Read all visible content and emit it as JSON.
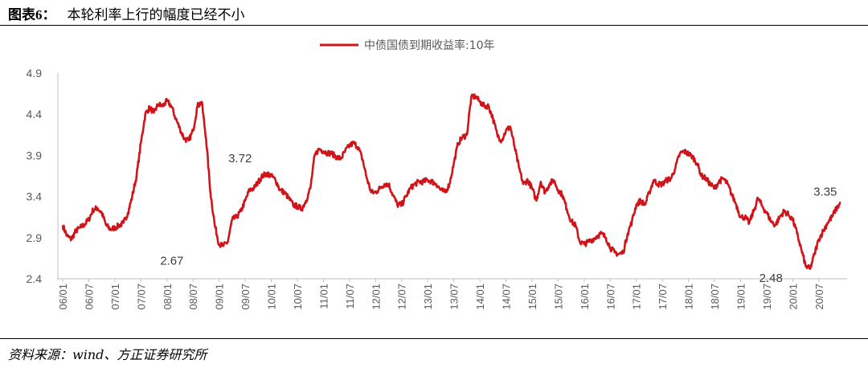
{
  "figure": {
    "label": "图表",
    "number": "6",
    "separator": "：",
    "title": "本轮利率上行的幅度已经不小"
  },
  "source": "资料来源：wind、方正证券研究所",
  "colors": {
    "series": "#d0141a",
    "axis": "#bfbfbf",
    "text": "#595959"
  },
  "chart_data": {
    "type": "line",
    "title": "",
    "xlabel": "",
    "ylabel": "",
    "legend": {
      "position": "top-center"
    },
    "grid": false,
    "ylim": [
      2.4,
      4.9
    ],
    "y_ticks": [
      "2.4",
      "2.9",
      "3.4",
      "3.9",
      "4.4",
      "4.9"
    ],
    "x_ticks": [
      "06/01",
      "06/07",
      "07/01",
      "07/07",
      "08/01",
      "08/07",
      "09/01",
      "09/07",
      "10/01",
      "10/07",
      "11/01",
      "11/07",
      "12/01",
      "12/07",
      "13/01",
      "13/07",
      "14/01",
      "14/07",
      "15/01",
      "15/07",
      "16/01",
      "16/07",
      "17/01",
      "17/07",
      "18/01",
      "18/07",
      "19/01",
      "19/07",
      "20/01",
      "20/07"
    ],
    "series": [
      {
        "name": "中债国债到期收益率:10年",
        "points": [
          [
            "2006-01",
            3.05
          ],
          [
            "2006-02",
            2.92
          ],
          [
            "2006-03",
            2.88
          ],
          [
            "2006-04",
            2.98
          ],
          [
            "2006-05",
            3.02
          ],
          [
            "2006-06",
            3.06
          ],
          [
            "2006-07",
            3.12
          ],
          [
            "2006-08",
            3.24
          ],
          [
            "2006-09",
            3.26
          ],
          [
            "2006-10",
            3.2
          ],
          [
            "2006-11",
            3.05
          ],
          [
            "2006-12",
            3.0
          ],
          [
            "2007-01",
            3.02
          ],
          [
            "2007-02",
            3.05
          ],
          [
            "2007-03",
            3.08
          ],
          [
            "2007-04",
            3.2
          ],
          [
            "2007-05",
            3.4
          ],
          [
            "2007-06",
            3.65
          ],
          [
            "2007-07",
            4.05
          ],
          [
            "2007-08",
            4.4
          ],
          [
            "2007-09",
            4.48
          ],
          [
            "2007-10",
            4.42
          ],
          [
            "2007-11",
            4.52
          ],
          [
            "2007-12",
            4.5
          ],
          [
            "2008-01",
            4.56
          ],
          [
            "2008-02",
            4.5
          ],
          [
            "2008-03",
            4.35
          ],
          [
            "2008-04",
            4.22
          ],
          [
            "2008-05",
            4.1
          ],
          [
            "2008-06",
            4.08
          ],
          [
            "2008-07",
            4.2
          ],
          [
            "2008-08",
            4.5
          ],
          [
            "2008-09",
            4.55
          ],
          [
            "2008-10",
            4.1
          ],
          [
            "2008-11",
            3.45
          ],
          [
            "2008-12",
            3.05
          ],
          [
            "2009-01",
            2.82
          ],
          [
            "2009-02",
            2.8
          ],
          [
            "2009-03",
            2.85
          ],
          [
            "2009-04",
            3.12
          ],
          [
            "2009-05",
            3.15
          ],
          [
            "2009-06",
            3.22
          ],
          [
            "2009-07",
            3.35
          ],
          [
            "2009-08",
            3.48
          ],
          [
            "2009-09",
            3.5
          ],
          [
            "2009-10",
            3.58
          ],
          [
            "2009-11",
            3.65
          ],
          [
            "2009-12",
            3.68
          ],
          [
            "2010-01",
            3.65
          ],
          [
            "2010-02",
            3.6
          ],
          [
            "2010-03",
            3.48
          ],
          [
            "2010-04",
            3.45
          ],
          [
            "2010-05",
            3.38
          ],
          [
            "2010-06",
            3.3
          ],
          [
            "2010-07",
            3.28
          ],
          [
            "2010-08",
            3.25
          ],
          [
            "2010-09",
            3.35
          ],
          [
            "2010-10",
            3.5
          ],
          [
            "2010-11",
            3.9
          ],
          [
            "2010-12",
            3.98
          ],
          [
            "2011-01",
            3.95
          ],
          [
            "2011-02",
            3.93
          ],
          [
            "2011-03",
            3.92
          ],
          [
            "2011-04",
            3.88
          ],
          [
            "2011-05",
            3.86
          ],
          [
            "2011-06",
            3.95
          ],
          [
            "2011-07",
            4.02
          ],
          [
            "2011-08",
            4.05
          ],
          [
            "2011-09",
            4.0
          ],
          [
            "2011-10",
            3.85
          ],
          [
            "2011-11",
            3.62
          ],
          [
            "2011-12",
            3.45
          ],
          [
            "2012-01",
            3.45
          ],
          [
            "2012-02",
            3.5
          ],
          [
            "2012-03",
            3.55
          ],
          [
            "2012-04",
            3.55
          ],
          [
            "2012-05",
            3.42
          ],
          [
            "2012-06",
            3.3
          ],
          [
            "2012-07",
            3.3
          ],
          [
            "2012-08",
            3.4
          ],
          [
            "2012-09",
            3.5
          ],
          [
            "2012-10",
            3.55
          ],
          [
            "2012-11",
            3.58
          ],
          [
            "2012-12",
            3.58
          ],
          [
            "2013-01",
            3.6
          ],
          [
            "2013-02",
            3.58
          ],
          [
            "2013-03",
            3.55
          ],
          [
            "2013-04",
            3.48
          ],
          [
            "2013-05",
            3.45
          ],
          [
            "2013-06",
            3.55
          ],
          [
            "2013-07",
            3.8
          ],
          [
            "2013-08",
            4.05
          ],
          [
            "2013-09",
            4.12
          ],
          [
            "2013-10",
            4.15
          ],
          [
            "2013-11",
            4.6
          ],
          [
            "2013-12",
            4.62
          ],
          [
            "2014-01",
            4.55
          ],
          [
            "2014-02",
            4.5
          ],
          [
            "2014-03",
            4.5
          ],
          [
            "2014-04",
            4.35
          ],
          [
            "2014-05",
            4.15
          ],
          [
            "2014-06",
            4.08
          ],
          [
            "2014-07",
            4.2
          ],
          [
            "2014-08",
            4.25
          ],
          [
            "2014-09",
            4.0
          ],
          [
            "2014-10",
            3.75
          ],
          [
            "2014-11",
            3.55
          ],
          [
            "2014-12",
            3.6
          ],
          [
            "2015-01",
            3.5
          ],
          [
            "2015-02",
            3.35
          ],
          [
            "2015-03",
            3.58
          ],
          [
            "2015-04",
            3.45
          ],
          [
            "2015-05",
            3.55
          ],
          [
            "2015-06",
            3.6
          ],
          [
            "2015-07",
            3.48
          ],
          [
            "2015-08",
            3.42
          ],
          [
            "2015-09",
            3.25
          ],
          [
            "2015-10",
            3.1
          ],
          [
            "2015-11",
            3.05
          ],
          [
            "2015-12",
            2.85
          ],
          [
            "2016-01",
            2.82
          ],
          [
            "2016-02",
            2.85
          ],
          [
            "2016-03",
            2.88
          ],
          [
            "2016-04",
            2.92
          ],
          [
            "2016-05",
            2.95
          ],
          [
            "2016-06",
            2.9
          ],
          [
            "2016-07",
            2.78
          ],
          [
            "2016-08",
            2.72
          ],
          [
            "2016-09",
            2.7
          ],
          [
            "2016-10",
            2.72
          ],
          [
            "2016-11",
            2.95
          ],
          [
            "2016-12",
            3.1
          ],
          [
            "2017-01",
            3.3
          ],
          [
            "2017-02",
            3.35
          ],
          [
            "2017-03",
            3.3
          ],
          [
            "2017-04",
            3.45
          ],
          [
            "2017-05",
            3.6
          ],
          [
            "2017-06",
            3.55
          ],
          [
            "2017-07",
            3.55
          ],
          [
            "2017-08",
            3.6
          ],
          [
            "2017-09",
            3.62
          ],
          [
            "2017-10",
            3.75
          ],
          [
            "2017-11",
            3.92
          ],
          [
            "2017-12",
            3.95
          ],
          [
            "2018-01",
            3.92
          ],
          [
            "2018-02",
            3.88
          ],
          [
            "2018-03",
            3.8
          ],
          [
            "2018-04",
            3.65
          ],
          [
            "2018-05",
            3.62
          ],
          [
            "2018-06",
            3.55
          ],
          [
            "2018-07",
            3.5
          ],
          [
            "2018-08",
            3.58
          ],
          [
            "2018-09",
            3.62
          ],
          [
            "2018-10",
            3.55
          ],
          [
            "2018-11",
            3.42
          ],
          [
            "2018-12",
            3.3
          ],
          [
            "2019-01",
            3.15
          ],
          [
            "2019-02",
            3.15
          ],
          [
            "2019-03",
            3.08
          ],
          [
            "2019-04",
            3.22
          ],
          [
            "2019-05",
            3.38
          ],
          [
            "2019-06",
            3.28
          ],
          [
            "2019-07",
            3.2
          ],
          [
            "2019-08",
            3.1
          ],
          [
            "2019-09",
            3.05
          ],
          [
            "2019-10",
            3.15
          ],
          [
            "2019-11",
            3.22
          ],
          [
            "2019-12",
            3.18
          ],
          [
            "2020-01",
            3.12
          ],
          [
            "2020-02",
            2.95
          ],
          [
            "2020-03",
            2.75
          ],
          [
            "2020-04",
            2.55
          ],
          [
            "2020-05",
            2.52
          ],
          [
            "2020-06",
            2.7
          ],
          [
            "2020-07",
            2.88
          ],
          [
            "2020-08",
            2.98
          ],
          [
            "2020-09",
            3.08
          ],
          [
            "2020-10",
            3.15
          ],
          [
            "2020-11",
            3.25
          ],
          [
            "2020-12",
            3.32
          ]
        ]
      }
    ],
    "annotations": [
      {
        "text": "3.72",
        "x": "2009-02",
        "y": 3.72
      },
      {
        "text": "2.67",
        "x": "2008-12",
        "y": 2.67
      },
      {
        "text": "3.35",
        "x": "2020-08",
        "y": 3.35
      },
      {
        "text": "2.48",
        "x": "2020-04",
        "y": 2.48
      }
    ]
  }
}
